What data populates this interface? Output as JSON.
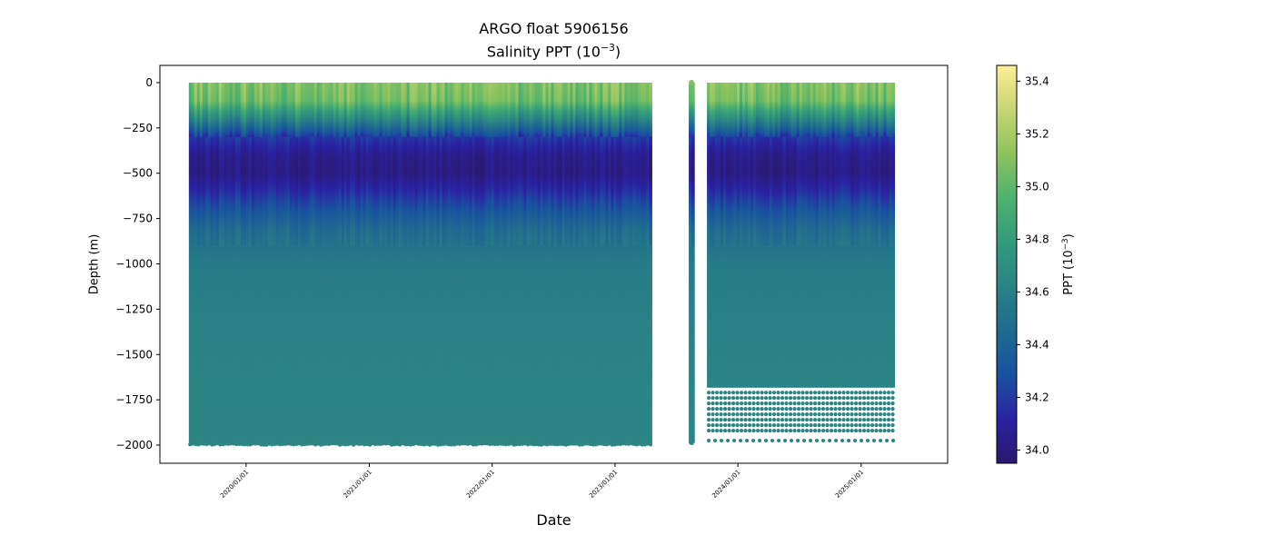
{
  "chart_data": {
    "type": "scatter",
    "title": "ARGO float 5906156",
    "subtitle_prefix": "Salinity PPT (10",
    "subtitle_exponent": "−3",
    "subtitle_suffix": ")",
    "xlabel": "Date",
    "ylabel": "Depth (m)",
    "colorbar_label_prefix": "PPT (10",
    "colorbar_label_exponent": "−3",
    "colorbar_label_suffix": ")",
    "colormap": "haline",
    "colormap_stops": [
      "#2a186c",
      "#2b22a2",
      "#1a52a0",
      "#1f6a8f",
      "#2b8385",
      "#339a7c",
      "#4fb16e",
      "#8cc35f",
      "#c7d574",
      "#fdee99"
    ],
    "color_range": [
      33.95,
      35.46
    ],
    "colorbar_ticks": [
      34.0,
      34.2,
      34.4,
      34.6,
      34.8,
      35.0,
      35.2,
      35.4
    ],
    "colorbar_tick_labels": [
      "34.0",
      "34.2",
      "34.4",
      "34.6",
      "34.8",
      "35.0",
      "35.2",
      "35.4"
    ],
    "xlim": [
      "2019-04-20",
      "2025-09-15"
    ],
    "ylim": [
      -2100,
      95
    ],
    "x_ticks": [
      "2020-01-01",
      "2021-01-01",
      "2022-01-01",
      "2023-01-01",
      "2024-01-01",
      "2025-01-01"
    ],
    "x_tick_labels": [
      "2020/01/01",
      "2021/01/01",
      "2022/01/01",
      "2023/01/01",
      "2024/01/01",
      "2025/01/01"
    ],
    "y_ticks": [
      0,
      -250,
      -500,
      -750,
      -1000,
      -1250,
      -1500,
      -1750,
      -2000
    ],
    "y_tick_labels": [
      "0",
      "−250",
      "−500",
      "−750",
      "−1000",
      "−1250",
      "−1500",
      "−1750",
      "−2000"
    ],
    "grid": false,
    "segments": [
      {
        "start": "2019-07-15",
        "end": "2023-04-20",
        "min_depth": 0,
        "max_depth": -1990
      },
      {
        "start": "2023-08-08",
        "end": "2023-08-12",
        "min_depth": 0,
        "max_depth": -1985
      },
      {
        "start": "2023-10-01",
        "end": "2025-04-10",
        "min_depth": 0,
        "max_depth": -1680
      }
    ],
    "profile_salinity": [
      {
        "depth": 0,
        "salinity": 35.1
      },
      {
        "depth": -100,
        "salinity": 35.05
      },
      {
        "depth": -200,
        "salinity": 34.65
      },
      {
        "depth": -300,
        "salinity": 34.2
      },
      {
        "depth": -400,
        "salinity": 34.05
      },
      {
        "depth": -500,
        "salinity": 34.02
      },
      {
        "depth": -600,
        "salinity": 34.15
      },
      {
        "depth": -700,
        "salinity": 34.3
      },
      {
        "depth": -800,
        "salinity": 34.45
      },
      {
        "depth": -900,
        "salinity": 34.52
      },
      {
        "depth": -1000,
        "salinity": 34.57
      },
      {
        "depth": -1250,
        "salinity": 34.6
      },
      {
        "depth": -1500,
        "salinity": 34.62
      },
      {
        "depth": -2000,
        "salinity": 34.64
      }
    ],
    "deep_sample_depths_segment3": [
      -1710,
      -1740,
      -1770,
      -1800,
      -1830,
      -1860,
      -1890,
      -1920,
      -1975
    ]
  }
}
